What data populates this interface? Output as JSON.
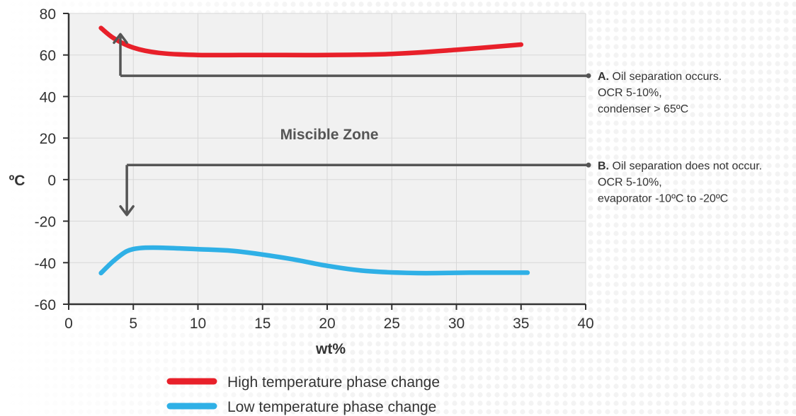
{
  "chart_data": {
    "type": "line",
    "xlabel": "wt%",
    "ylabel": "ºC",
    "xlim": [
      0,
      40
    ],
    "ylim": [
      -60,
      80
    ],
    "x_ticks": [
      "0",
      "5",
      "10",
      "15",
      "20",
      "25",
      "30",
      "35",
      "40"
    ],
    "y_ticks": [
      "80",
      "60",
      "40",
      "20",
      "0",
      "-20",
      "-40",
      "-60"
    ],
    "grid": true,
    "legend_position": "bottom",
    "zone_label": "Miscible Zone",
    "series": [
      {
        "name": "High temperature phase change",
        "color": "#e8202a",
        "x": [
          2.5,
          3.5,
          5,
          7,
          10,
          15,
          20,
          25,
          30,
          35
        ],
        "y": [
          73,
          68,
          63.5,
          61,
          60,
          60,
          60,
          60.5,
          62.5,
          65
        ]
      },
      {
        "name": "Low temperature phase change",
        "color": "#2fb0e6",
        "x": [
          2.5,
          3.5,
          4.5,
          5.5,
          7,
          10,
          13,
          17,
          20,
          23,
          27,
          31,
          35.5
        ],
        "y": [
          -45,
          -39,
          -34.5,
          -33,
          -32.8,
          -33.5,
          -34.5,
          -38,
          -41.5,
          -44,
          -45,
          -44.8,
          -44.8
        ]
      }
    ],
    "annotations": [
      {
        "id": "a",
        "marker": "A.",
        "line1": " Oil separation occurs.",
        "line2": "OCR 5-10%,",
        "line3": "condenser > 65ºC",
        "y": 50,
        "arrow_x": 4,
        "arrow_from": 50,
        "arrow_to": 70
      },
      {
        "id": "b",
        "marker": "B.",
        "line1": " Oil separation does not occur.",
        "line2": "OCR 5-10%,",
        "line3": "evaporator  -10ºC to -20ºC",
        "y": 7,
        "arrow_x": 4.5,
        "arrow_from": 7,
        "arrow_to": -17
      }
    ]
  }
}
